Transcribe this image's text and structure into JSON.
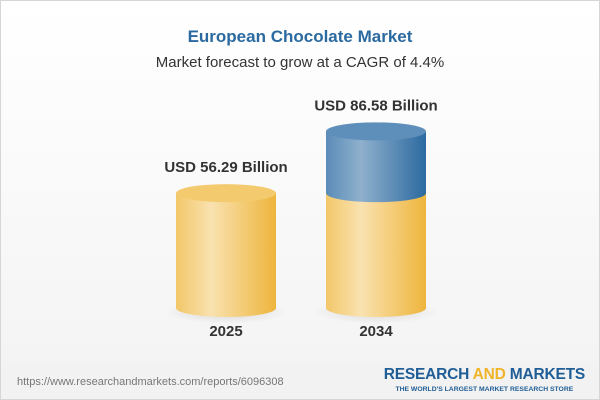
{
  "title": "European Chocolate Market",
  "subtitle": "Market forecast to grow at a CAGR of 4.4%",
  "chart_data": {
    "type": "bar",
    "style": "3d-cylinder",
    "categories": [
      "2025",
      "2034"
    ],
    "values": [
      56.29,
      86.58
    ],
    "data_labels": [
      "USD 56.29 Billion",
      "USD 86.58 Billion"
    ],
    "unit": "USD Billion",
    "colors": {
      "base": "#f2c15a",
      "growth": "#4a82b4"
    },
    "grid": false
  },
  "footer": {
    "url": "https://www.researchandmarkets.com/reports/6096308",
    "logo_part1": "RESEARCH ",
    "logo_part2": "AND",
    "logo_part3": " MARKETS",
    "tagline": "THE WORLD'S LARGEST MARKET RESEARCH STORE"
  }
}
